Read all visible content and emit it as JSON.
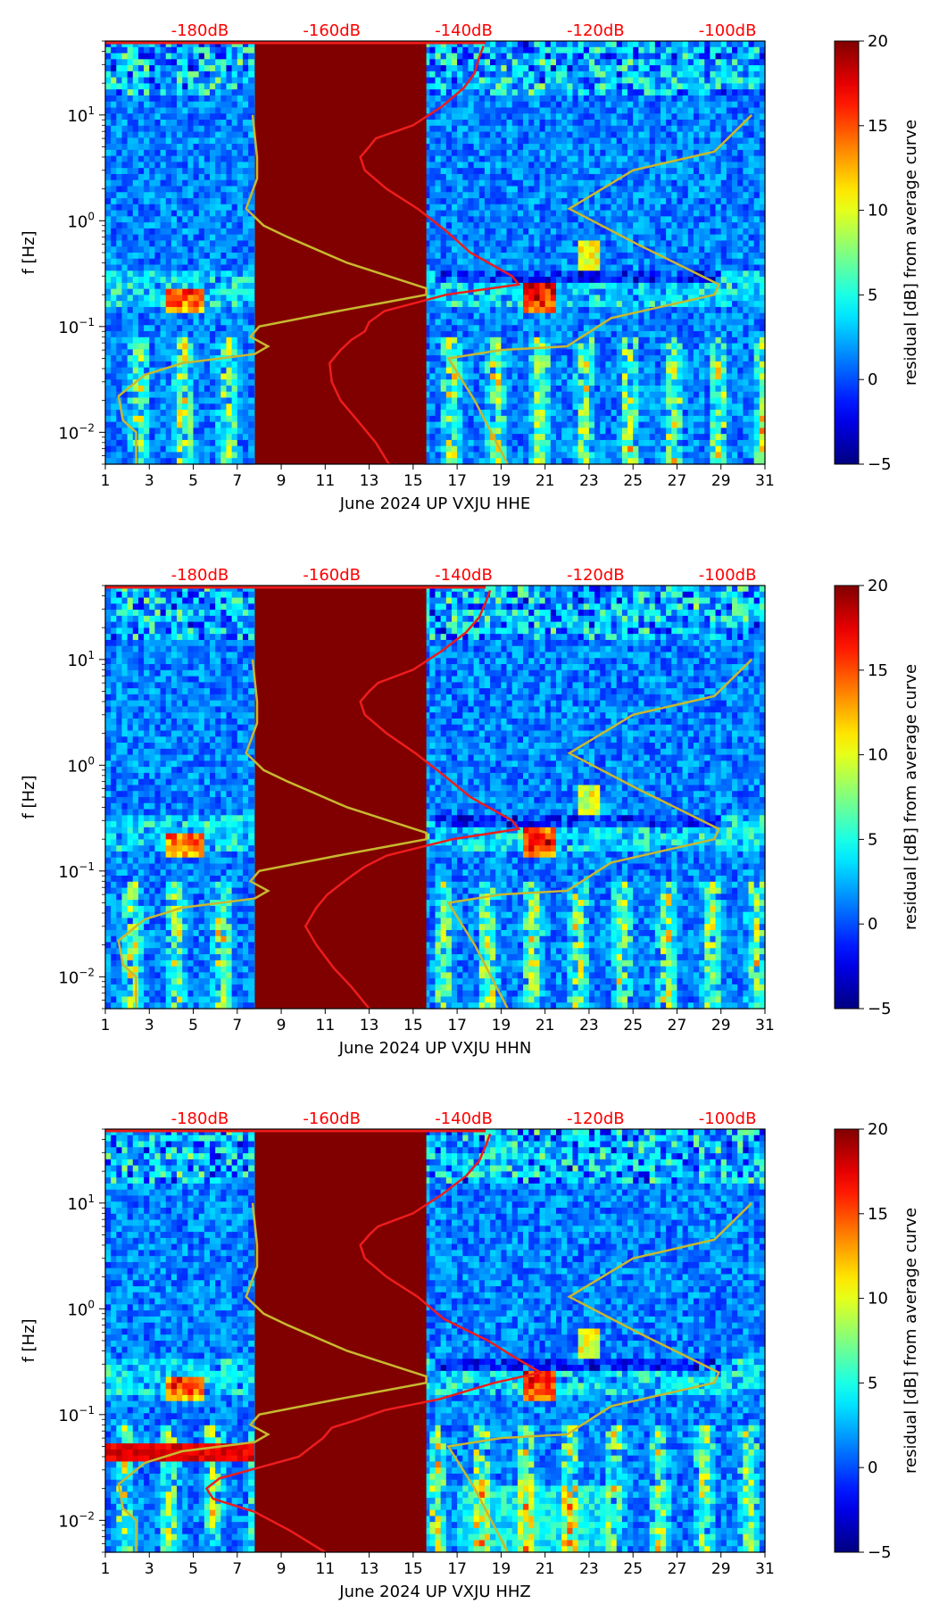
{
  "chart_data": [
    {
      "type": "heatmap",
      "title": "",
      "xlabel": "June 2024 UP VXJU  HHE",
      "ylabel": "f [Hz]",
      "colorbar_label": "residual [dB] from average curve",
      "x_ticks": [
        "1",
        "3",
        "5",
        "7",
        "9",
        "11",
        "13",
        "15",
        "17",
        "19",
        "21",
        "23",
        "25",
        "27",
        "29",
        "31"
      ],
      "y_ticks": [
        {
          "base": "10",
          "exp": "−2"
        },
        {
          "base": "10",
          "exp": "−1"
        },
        {
          "base": "10",
          "exp": "0"
        },
        {
          "base": "10",
          "exp": "1"
        }
      ],
      "colorbar_ticks": [
        "−5",
        "0",
        "5",
        "10",
        "15",
        "20"
      ],
      "top_ticks": [
        "-180dB",
        "-160dB",
        "-140dB",
        "-120dB",
        "-100dB"
      ],
      "xlim": [
        1,
        31
      ],
      "ylim_hz": [
        0.005,
        50
      ],
      "clim": [
        -5,
        20
      ],
      "gap_days": [
        7.8,
        15.6
      ],
      "red_curve": [
        [
          0.005,
          13.9
        ],
        [
          0.008,
          13.3
        ],
        [
          0.012,
          12.6
        ],
        [
          0.02,
          11.7
        ],
        [
          0.03,
          11.3
        ],
        [
          0.045,
          11.2
        ],
        [
          0.06,
          11.7
        ],
        [
          0.075,
          12.2
        ],
        [
          0.09,
          12.8
        ],
        [
          0.11,
          13.0
        ],
        [
          0.14,
          13.7
        ],
        [
          0.2,
          16.5
        ],
        [
          0.25,
          19.8
        ],
        [
          0.3,
          19.5
        ],
        [
          0.5,
          17.6
        ],
        [
          0.8,
          16.5
        ],
        [
          1.3,
          15.2
        ],
        [
          2.0,
          13.8
        ],
        [
          3.0,
          12.8
        ],
        [
          4.0,
          12.6
        ],
        [
          5.0,
          13.0
        ],
        [
          6.0,
          13.3
        ],
        [
          8.0,
          15.0
        ],
        [
          12.0,
          16.3
        ],
        [
          18.0,
          17.3
        ],
        [
          25.0,
          17.8
        ],
        [
          35.0,
          18.0
        ],
        [
          45.0,
          18.2
        ]
      ],
      "yellow_curve": [
        [
          0.005,
          2.4
        ],
        [
          0.01,
          2.4
        ],
        [
          0.013,
          1.8
        ],
        [
          0.022,
          1.6
        ],
        [
          0.035,
          2.8
        ],
        [
          0.045,
          4.5
        ],
        [
          0.055,
          7.8
        ],
        [
          0.065,
          8.4
        ],
        [
          0.08,
          7.6
        ],
        [
          0.1,
          8.0
        ],
        [
          0.14,
          11.6
        ],
        [
          0.17,
          13.8
        ],
        [
          0.2,
          15.6
        ],
        [
          0.23,
          15.6
        ],
        [
          0.4,
          12.0
        ],
        [
          0.7,
          9.3
        ],
        [
          0.9,
          8.2
        ],
        [
          1.3,
          7.4
        ],
        [
          2.5,
          7.9
        ],
        [
          4.0,
          7.9
        ],
        [
          10.0,
          7.7
        ]
      ],
      "yellow_curve_right": [
        [
          0.005,
          19.3
        ],
        [
          0.02,
          17.8
        ],
        [
          0.05,
          16.6
        ],
        [
          0.06,
          19.0
        ],
        [
          0.065,
          22.0
        ],
        [
          0.12,
          24.0
        ],
        [
          0.2,
          28.7
        ],
        [
          0.25,
          28.9
        ],
        [
          0.6,
          25.2
        ],
        [
          1.3,
          22.1
        ],
        [
          3.0,
          25.0
        ],
        [
          4.5,
          28.7
        ],
        [
          10.0,
          30.4
        ]
      ]
    },
    {
      "type": "heatmap",
      "title": "",
      "xlabel": "June 2024 UP VXJU  HHN",
      "ylabel": "f [Hz]",
      "colorbar_label": "residual [dB] from average curve",
      "x_ticks": [
        "1",
        "3",
        "5",
        "7",
        "9",
        "11",
        "13",
        "15",
        "17",
        "19",
        "21",
        "23",
        "25",
        "27",
        "29",
        "31"
      ],
      "y_ticks": [
        {
          "base": "10",
          "exp": "−2"
        },
        {
          "base": "10",
          "exp": "−1"
        },
        {
          "base": "10",
          "exp": "0"
        },
        {
          "base": "10",
          "exp": "1"
        }
      ],
      "colorbar_ticks": [
        "−5",
        "0",
        "5",
        "10",
        "15",
        "20"
      ],
      "top_ticks": [
        "-180dB",
        "-160dB",
        "-140dB",
        "-120dB",
        "-100dB"
      ],
      "xlim": [
        1,
        31
      ],
      "ylim_hz": [
        0.005,
        50
      ],
      "clim": [
        -5,
        20
      ],
      "gap_days": [
        7.8,
        15.6
      ],
      "red_curve": [
        [
          0.005,
          13.0
        ],
        [
          0.008,
          12.2
        ],
        [
          0.012,
          11.4
        ],
        [
          0.02,
          10.6
        ],
        [
          0.03,
          10.1
        ],
        [
          0.045,
          10.6
        ],
        [
          0.06,
          11.1
        ],
        [
          0.075,
          11.7
        ],
        [
          0.09,
          12.2
        ],
        [
          0.11,
          12.8
        ],
        [
          0.14,
          13.8
        ],
        [
          0.2,
          16.8
        ],
        [
          0.25,
          19.8
        ],
        [
          0.3,
          19.5
        ],
        [
          0.5,
          17.6
        ],
        [
          0.8,
          16.4
        ],
        [
          1.3,
          15.1
        ],
        [
          2.0,
          13.8
        ],
        [
          3.0,
          12.8
        ],
        [
          4.0,
          12.6
        ],
        [
          5.0,
          13.0
        ],
        [
          6.0,
          13.4
        ],
        [
          8.0,
          15.0
        ],
        [
          12.0,
          16.3
        ],
        [
          18.0,
          17.4
        ],
        [
          25.0,
          18.0
        ],
        [
          35.0,
          18.3
        ],
        [
          45.0,
          18.5
        ]
      ],
      "yellow_curve": [
        [
          0.005,
          2.4
        ],
        [
          0.01,
          2.4
        ],
        [
          0.013,
          1.8
        ],
        [
          0.022,
          1.6
        ],
        [
          0.035,
          2.8
        ],
        [
          0.045,
          4.5
        ],
        [
          0.055,
          7.8
        ],
        [
          0.065,
          8.4
        ],
        [
          0.08,
          7.6
        ],
        [
          0.1,
          8.0
        ],
        [
          0.14,
          11.6
        ],
        [
          0.17,
          13.8
        ],
        [
          0.2,
          15.6
        ],
        [
          0.23,
          15.6
        ],
        [
          0.4,
          12.0
        ],
        [
          0.7,
          9.3
        ],
        [
          0.9,
          8.2
        ],
        [
          1.3,
          7.4
        ],
        [
          2.5,
          7.9
        ],
        [
          4.0,
          7.9
        ],
        [
          10.0,
          7.7
        ]
      ],
      "yellow_curve_right": [
        [
          0.005,
          19.3
        ],
        [
          0.02,
          17.8
        ],
        [
          0.05,
          16.6
        ],
        [
          0.06,
          19.0
        ],
        [
          0.065,
          22.0
        ],
        [
          0.12,
          24.0
        ],
        [
          0.2,
          28.7
        ],
        [
          0.25,
          28.9
        ],
        [
          0.6,
          25.2
        ],
        [
          1.3,
          22.1
        ],
        [
          3.0,
          25.0
        ],
        [
          4.5,
          28.7
        ],
        [
          10.0,
          30.4
        ]
      ]
    },
    {
      "type": "heatmap",
      "title": "",
      "xlabel": "June 2024 UP VXJU  HHZ",
      "ylabel": "f [Hz]",
      "colorbar_label": "residual [dB] from average curve",
      "x_ticks": [
        "1",
        "3",
        "5",
        "7",
        "9",
        "11",
        "13",
        "15",
        "17",
        "19",
        "21",
        "23",
        "25",
        "27",
        "29",
        "31"
      ],
      "y_ticks": [
        {
          "base": "10",
          "exp": "−2"
        },
        {
          "base": "10",
          "exp": "−1"
        },
        {
          "base": "10",
          "exp": "0"
        },
        {
          "base": "10",
          "exp": "1"
        }
      ],
      "colorbar_ticks": [
        "−5",
        "0",
        "5",
        "10",
        "15",
        "20"
      ],
      "top_ticks": [
        "-180dB",
        "-160dB",
        "-140dB",
        "-120dB",
        "-100dB"
      ],
      "xlim": [
        1,
        31
      ],
      "ylim_hz": [
        0.005,
        50
      ],
      "clim": [
        -5,
        20
      ],
      "gap_days": [
        7.8,
        15.6
      ],
      "red_curve": [
        [
          0.005,
          11.0
        ],
        [
          0.008,
          9.4
        ],
        [
          0.012,
          7.8
        ],
        [
          0.016,
          5.9
        ],
        [
          0.02,
          5.6
        ],
        [
          0.025,
          6.2
        ],
        [
          0.03,
          7.6
        ],
        [
          0.04,
          9.8
        ],
        [
          0.05,
          10.4
        ],
        [
          0.06,
          10.9
        ],
        [
          0.075,
          11.3
        ],
        [
          0.09,
          12.5
        ],
        [
          0.11,
          13.7
        ],
        [
          0.14,
          16.2
        ],
        [
          0.2,
          18.7
        ],
        [
          0.25,
          20.8
        ],
        [
          0.35,
          19.6
        ],
        [
          0.5,
          18.4
        ],
        [
          0.8,
          16.4
        ],
        [
          1.3,
          15.2
        ],
        [
          2.0,
          13.8
        ],
        [
          3.0,
          12.8
        ],
        [
          4.0,
          12.6
        ],
        [
          5.0,
          13.0
        ],
        [
          6.0,
          13.4
        ],
        [
          8.0,
          15.0
        ],
        [
          12.0,
          16.3
        ],
        [
          18.0,
          17.4
        ],
        [
          25.0,
          18.0
        ],
        [
          35.0,
          18.3
        ],
        [
          45.0,
          18.5
        ]
      ],
      "yellow_curve": [
        [
          0.005,
          2.4
        ],
        [
          0.01,
          2.4
        ],
        [
          0.013,
          1.8
        ],
        [
          0.022,
          1.6
        ],
        [
          0.035,
          2.8
        ],
        [
          0.045,
          4.5
        ],
        [
          0.055,
          7.8
        ],
        [
          0.065,
          8.4
        ],
        [
          0.08,
          7.6
        ],
        [
          0.1,
          8.0
        ],
        [
          0.14,
          11.6
        ],
        [
          0.17,
          13.8
        ],
        [
          0.2,
          15.6
        ],
        [
          0.23,
          15.6
        ],
        [
          0.4,
          12.0
        ],
        [
          0.7,
          9.3
        ],
        [
          0.9,
          8.2
        ],
        [
          1.3,
          7.4
        ],
        [
          2.5,
          7.9
        ],
        [
          4.0,
          7.9
        ],
        [
          10.0,
          7.7
        ]
      ],
      "yellow_curve_right": [
        [
          0.005,
          19.3
        ],
        [
          0.02,
          17.8
        ],
        [
          0.05,
          16.6
        ],
        [
          0.06,
          19.0
        ],
        [
          0.065,
          22.0
        ],
        [
          0.12,
          24.0
        ],
        [
          0.2,
          28.7
        ],
        [
          0.25,
          28.9
        ],
        [
          0.6,
          25.2
        ],
        [
          1.3,
          22.1
        ],
        [
          3.0,
          25.0
        ],
        [
          4.5,
          28.7
        ],
        [
          10.0,
          30.4
        ]
      ]
    }
  ],
  "colors": {
    "red_curve": "#ee1c1c",
    "yellow_curve": "#c8b830",
    "top_ticks": "#ff0000",
    "gap_fill": "#800000"
  }
}
